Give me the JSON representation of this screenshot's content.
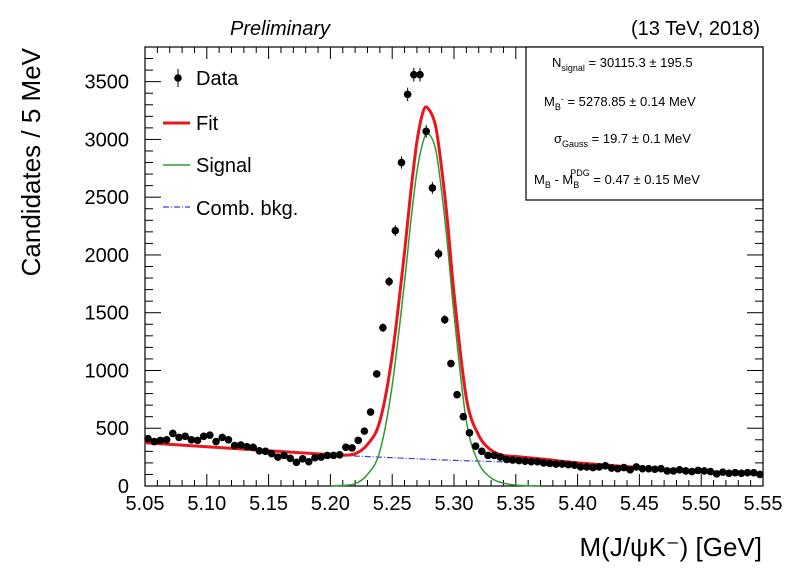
{
  "header": {
    "left": "Preliminary",
    "right": "(13 TeV, 2018)"
  },
  "legend": {
    "data": "Data",
    "fit": "Fit",
    "signal": "Signal",
    "bkg": "Comb. bkg."
  },
  "stats": {
    "n_main": "N",
    "n_sub": "signal",
    "n_val": " = 30115.3 ± 195.5",
    "m_main": "M",
    "m_sub": "B",
    "m_sup": "-",
    "m_val": " = 5278.85 ± 0.14 MeV",
    "s_main": "σ",
    "s_sub": "Gauss",
    "s_val": " = 19.7 ± 0.1 MeV",
    "d_main": "M",
    "d_sub": "B",
    "d_mid": " - M",
    "d_sub2": "B",
    "d_sup2": "PDG",
    "d_val": " = 0.47 ± 0.15 MeV"
  },
  "colors": {
    "data": "#000000",
    "fit": "#e8171e",
    "signal": "#2f9a2f",
    "bkg": "#3c3cd8"
  },
  "chart_data": {
    "type": "scatter",
    "xlabel": "M(J/ψK⁻) [GeV]",
    "ylabel": "Candidates / 5 MeV",
    "xlim": [
      5.05,
      5.55
    ],
    "ylim": [
      0,
      3800
    ],
    "xticks": [
      "5.05",
      "5.10",
      "5.15",
      "5.20",
      "5.25",
      "5.30",
      "5.35",
      "5.40",
      "5.45",
      "5.50",
      "5.55"
    ],
    "yticks": [
      "0",
      "500",
      "1000",
      "1500",
      "2000",
      "2500",
      "3000",
      "3500"
    ],
    "series": [
      {
        "name": "Data",
        "kind": "points",
        "x": [
          5.0525,
          5.0575,
          5.0625,
          5.0675,
          5.0725,
          5.0775,
          5.0825,
          5.0875,
          5.0925,
          5.0975,
          5.1025,
          5.1075,
          5.1125,
          5.1175,
          5.1225,
          5.1275,
          5.1325,
          5.1375,
          5.1425,
          5.1475,
          5.1525,
          5.1575,
          5.1625,
          5.1675,
          5.1725,
          5.1775,
          5.1825,
          5.1875,
          5.1925,
          5.1975,
          5.2025,
          5.2075,
          5.2125,
          5.2175,
          5.2225,
          5.2275,
          5.2325,
          5.2375,
          5.2425,
          5.2475,
          5.2525,
          5.2575,
          5.2625,
          5.2675,
          5.2725,
          5.2775,
          5.2825,
          5.2875,
          5.2925,
          5.2975,
          5.3025,
          5.3075,
          5.3125,
          5.3175,
          5.3225,
          5.3275,
          5.3325,
          5.3375,
          5.3425,
          5.3475,
          5.3525,
          5.3575,
          5.3625,
          5.3675,
          5.3725,
          5.3775,
          5.3825,
          5.3875,
          5.3925,
          5.3975,
          5.4025,
          5.4075,
          5.4125,
          5.4175,
          5.4225,
          5.4275,
          5.4325,
          5.4375,
          5.4425,
          5.4475,
          5.4525,
          5.4575,
          5.4625,
          5.4675,
          5.4725,
          5.4775,
          5.4825,
          5.4875,
          5.4925,
          5.4975,
          5.5025,
          5.5075,
          5.5125,
          5.5175,
          5.5225,
          5.5275,
          5.5325,
          5.5375,
          5.5425,
          5.5475
        ],
        "y": [
          410,
          385,
          395,
          400,
          455,
          420,
          430,
          400,
          395,
          430,
          440,
          385,
          420,
          400,
          350,
          355,
          340,
          335,
          305,
          300,
          280,
          250,
          265,
          240,
          205,
          235,
          210,
          245,
          250,
          265,
          265,
          270,
          335,
          330,
          395,
          475,
          640,
          970,
          1370,
          1770,
          2210,
          2800,
          3390,
          3560,
          3560,
          3070,
          2580,
          2010,
          1440,
          1060,
          790,
          600,
          460,
          345,
          300,
          265,
          265,
          250,
          230,
          225,
          220,
          215,
          210,
          210,
          200,
          195,
          190,
          190,
          185,
          180,
          165,
          165,
          160,
          165,
          175,
          155,
          150,
          160,
          140,
          165,
          150,
          150,
          145,
          150,
          130,
          130,
          140,
          130,
          125,
          135,
          130,
          125,
          105,
          120,
          110,
          115,
          110,
          115,
          115,
          100
        ]
      },
      {
        "name": "Fit",
        "kind": "line",
        "x": [
          5.05,
          5.1,
          5.15,
          5.2,
          5.21,
          5.22,
          5.23,
          5.24,
          5.25,
          5.26,
          5.265,
          5.27,
          5.275,
          5.2789,
          5.285,
          5.29,
          5.295,
          5.3,
          5.31,
          5.32,
          5.33,
          5.34,
          5.35,
          5.37,
          5.4,
          5.45,
          5.5,
          5.55
        ],
        "y": [
          375,
          340,
          305,
          272,
          267,
          280,
          360,
          560,
          1130,
          2030,
          2540,
          2980,
          3240,
          3270,
          3120,
          2750,
          2260,
          1670,
          760,
          440,
          310,
          265,
          255,
          235,
          200,
          160,
          125,
          110
        ]
      },
      {
        "name": "Signal",
        "kind": "line",
        "x": [
          5.2,
          5.21,
          5.22,
          5.23,
          5.24,
          5.25,
          5.26,
          5.265,
          5.27,
          5.275,
          5.2789,
          5.285,
          5.29,
          5.295,
          5.3,
          5.31,
          5.32,
          5.33,
          5.34,
          5.35,
          5.36,
          5.37
        ],
        "y": [
          0,
          5,
          20,
          100,
          300,
          870,
          1770,
          2280,
          2720,
          2980,
          3050,
          2920,
          2550,
          2060,
          1490,
          560,
          200,
          70,
          25,
          8,
          2,
          0
        ]
      },
      {
        "name": "Comb. bkg.",
        "kind": "line",
        "x": [
          5.21,
          5.25,
          5.3,
          5.35,
          5.4,
          5.45,
          5.5,
          5.55
        ],
        "y": [
          265,
          245,
          222,
          205,
          180,
          155,
          130,
          110
        ]
      }
    ]
  }
}
